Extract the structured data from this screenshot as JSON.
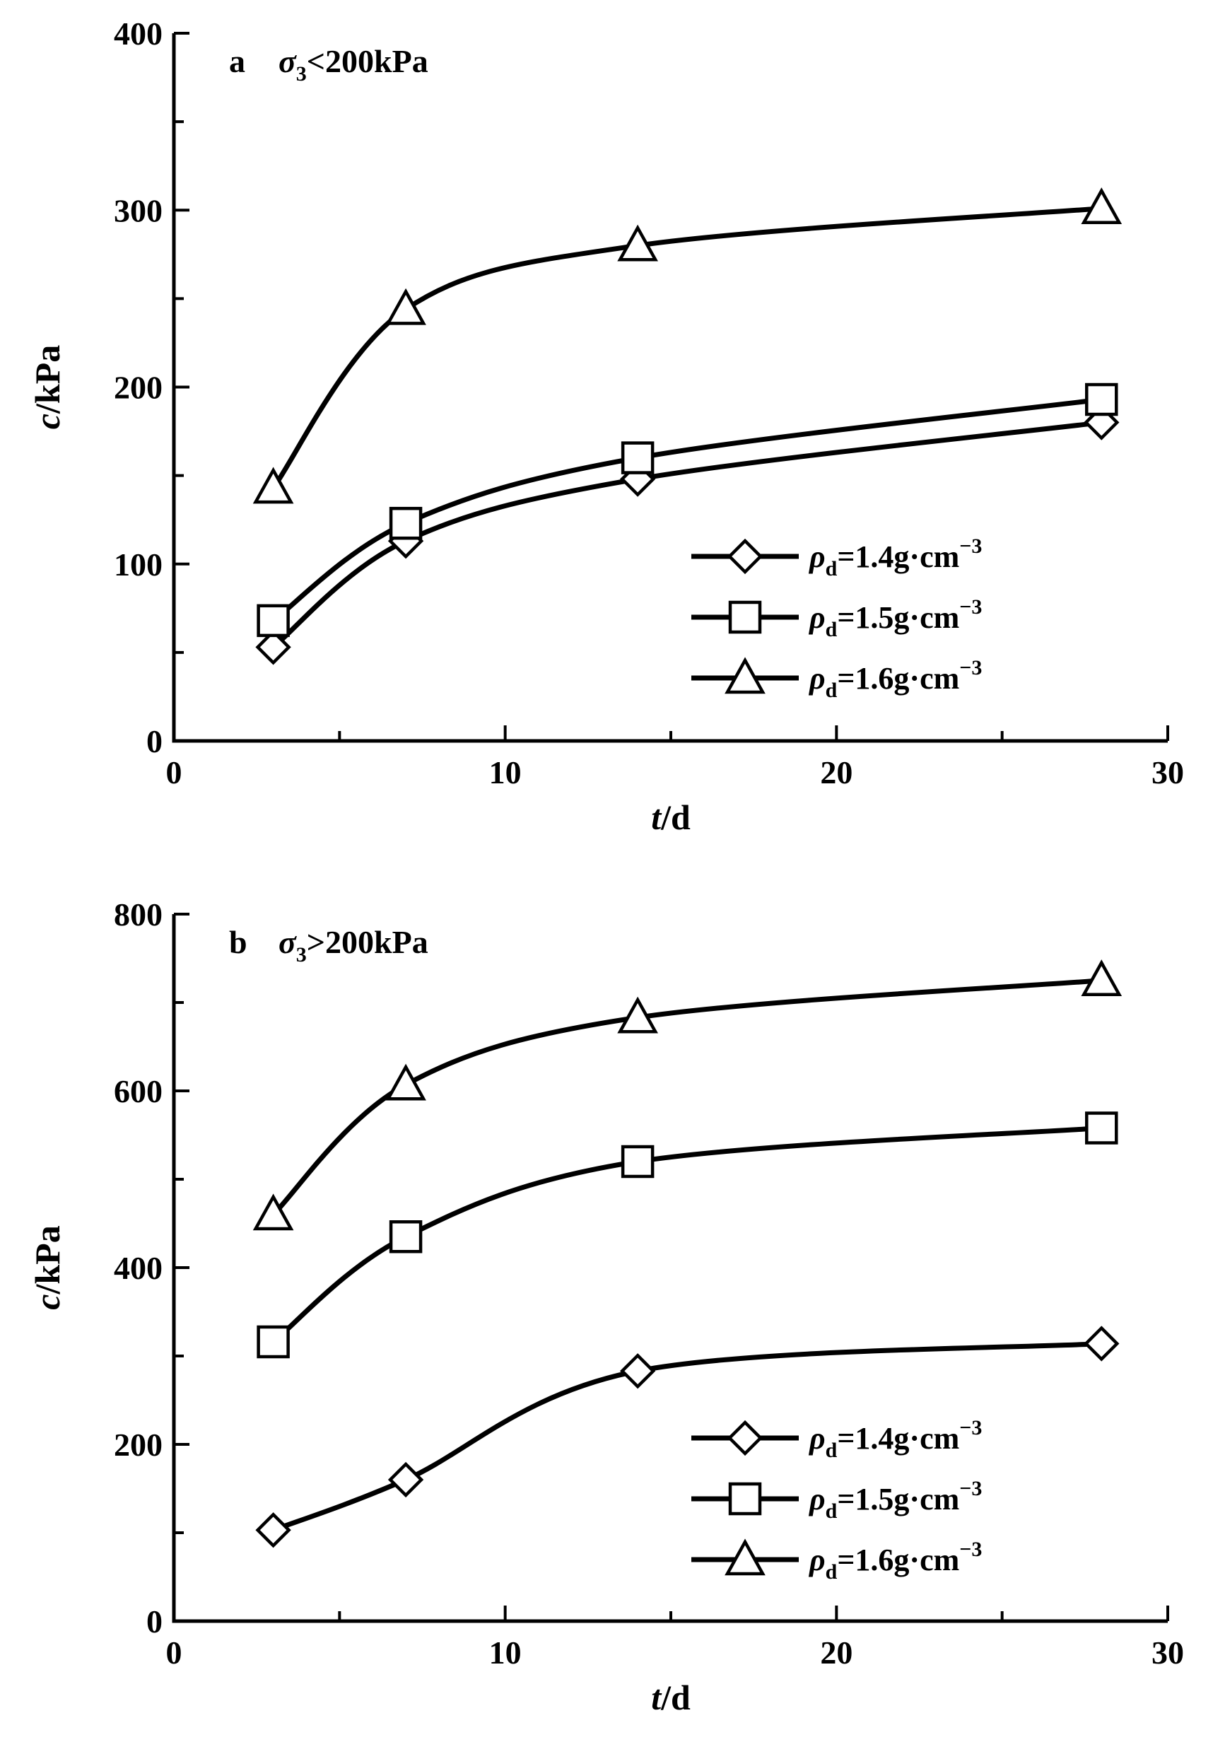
{
  "chart_data": [
    {
      "type": "line",
      "panel_label": "a",
      "condition": {
        "symbol": "σ",
        "subscript": "3",
        "relation": "<200kPa"
      },
      "xlabel": {
        "var": "t",
        "unit": "/d"
      },
      "ylabel": {
        "var": "c",
        "unit": "/kPa"
      },
      "xlim": [
        0,
        30
      ],
      "ylim": [
        0,
        400
      ],
      "xticks": [
        0,
        10,
        20,
        30
      ],
      "yticks": [
        0,
        100,
        200,
        300,
        400
      ],
      "legend_position": "lower-right",
      "series": [
        {
          "name": "ρd=1.4g·cm⁻³",
          "marker": "diamond",
          "x": [
            3,
            7,
            14,
            28
          ],
          "y": [
            53,
            113,
            148,
            180
          ]
        },
        {
          "name": "ρd=1.5g·cm⁻³",
          "marker": "square",
          "x": [
            3,
            7,
            14,
            28
          ],
          "y": [
            68,
            123,
            160,
            193
          ]
        },
        {
          "name": "ρd=1.6g·cm⁻³",
          "marker": "triangle",
          "x": [
            3,
            7,
            14,
            28
          ],
          "y": [
            143,
            244,
            280,
            301
          ]
        }
      ]
    },
    {
      "type": "line",
      "panel_label": "b",
      "condition": {
        "symbol": "σ",
        "subscript": "3",
        "relation": ">200kPa"
      },
      "xlabel": {
        "var": "t",
        "unit": "/d"
      },
      "ylabel": {
        "var": "c",
        "unit": "/kPa"
      },
      "xlim": [
        0,
        30
      ],
      "ylim": [
        0,
        800
      ],
      "xticks": [
        0,
        10,
        20,
        30
      ],
      "yticks": [
        0,
        200,
        400,
        600,
        800
      ],
      "legend_position": "lower-right",
      "series": [
        {
          "name": "ρd=1.4g·cm⁻³",
          "marker": "diamond",
          "x": [
            3,
            7,
            14,
            28
          ],
          "y": [
            103,
            160,
            283,
            314
          ]
        },
        {
          "name": "ρd=1.5g·cm⁻³",
          "marker": "square",
          "x": [
            3,
            7,
            14,
            28
          ],
          "y": [
            316,
            435,
            520,
            558
          ]
        },
        {
          "name": "ρd=1.6g·cm⁻³",
          "marker": "triangle",
          "x": [
            3,
            7,
            14,
            28
          ],
          "y": [
            460,
            607,
            683,
            725
          ]
        }
      ]
    }
  ]
}
